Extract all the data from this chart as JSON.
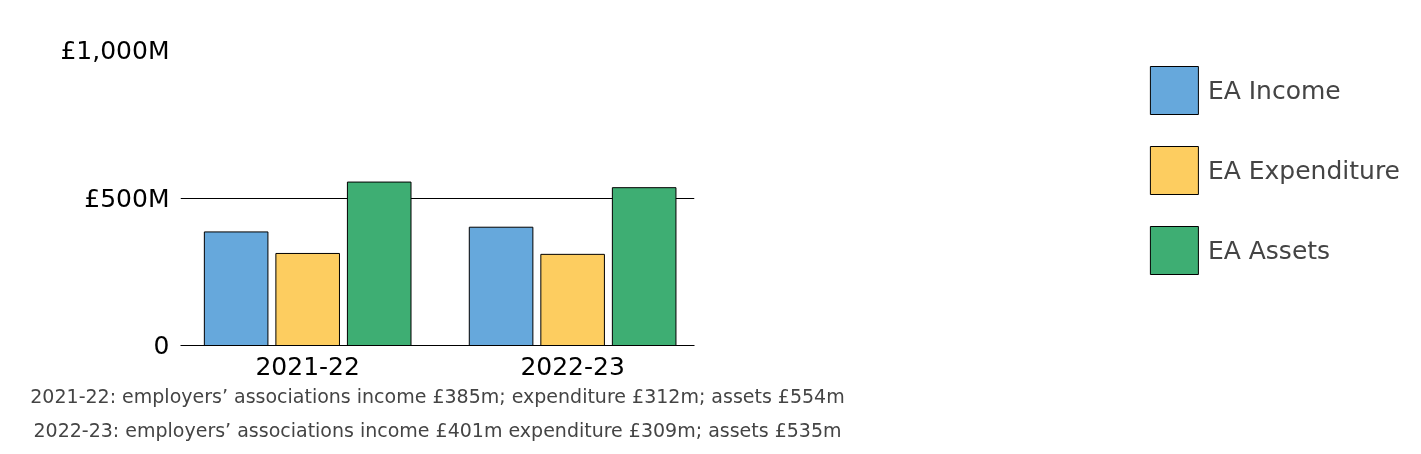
{
  "chart_data": {
    "type": "bar",
    "categories": [
      "2021-22",
      "2022-23"
    ],
    "series": [
      {
        "name": "EA Income",
        "color": "#66a8dc",
        "values": [
          385,
          401
        ]
      },
      {
        "name": "EA Expenditure",
        "color": "#fdcd60",
        "values": [
          312,
          309
        ]
      },
      {
        "name": "EA Assets",
        "color": "#3eae73",
        "values": [
          554,
          535
        ]
      }
    ],
    "ylim": [
      0,
      1000
    ],
    "yticks": [
      0,
      {
        "value": 500,
        "label": "£500M"
      },
      {
        "value": 1000,
        "label": "£1,000M"
      }
    ],
    "grid": "y",
    "legend": "right",
    "annotations": [
      "2021-22: employers’ associations income £385m; expenditure £312m; assets £554m",
      "2022-23: employers’ associations income £401m expenditure £309m; assets £535m"
    ]
  }
}
